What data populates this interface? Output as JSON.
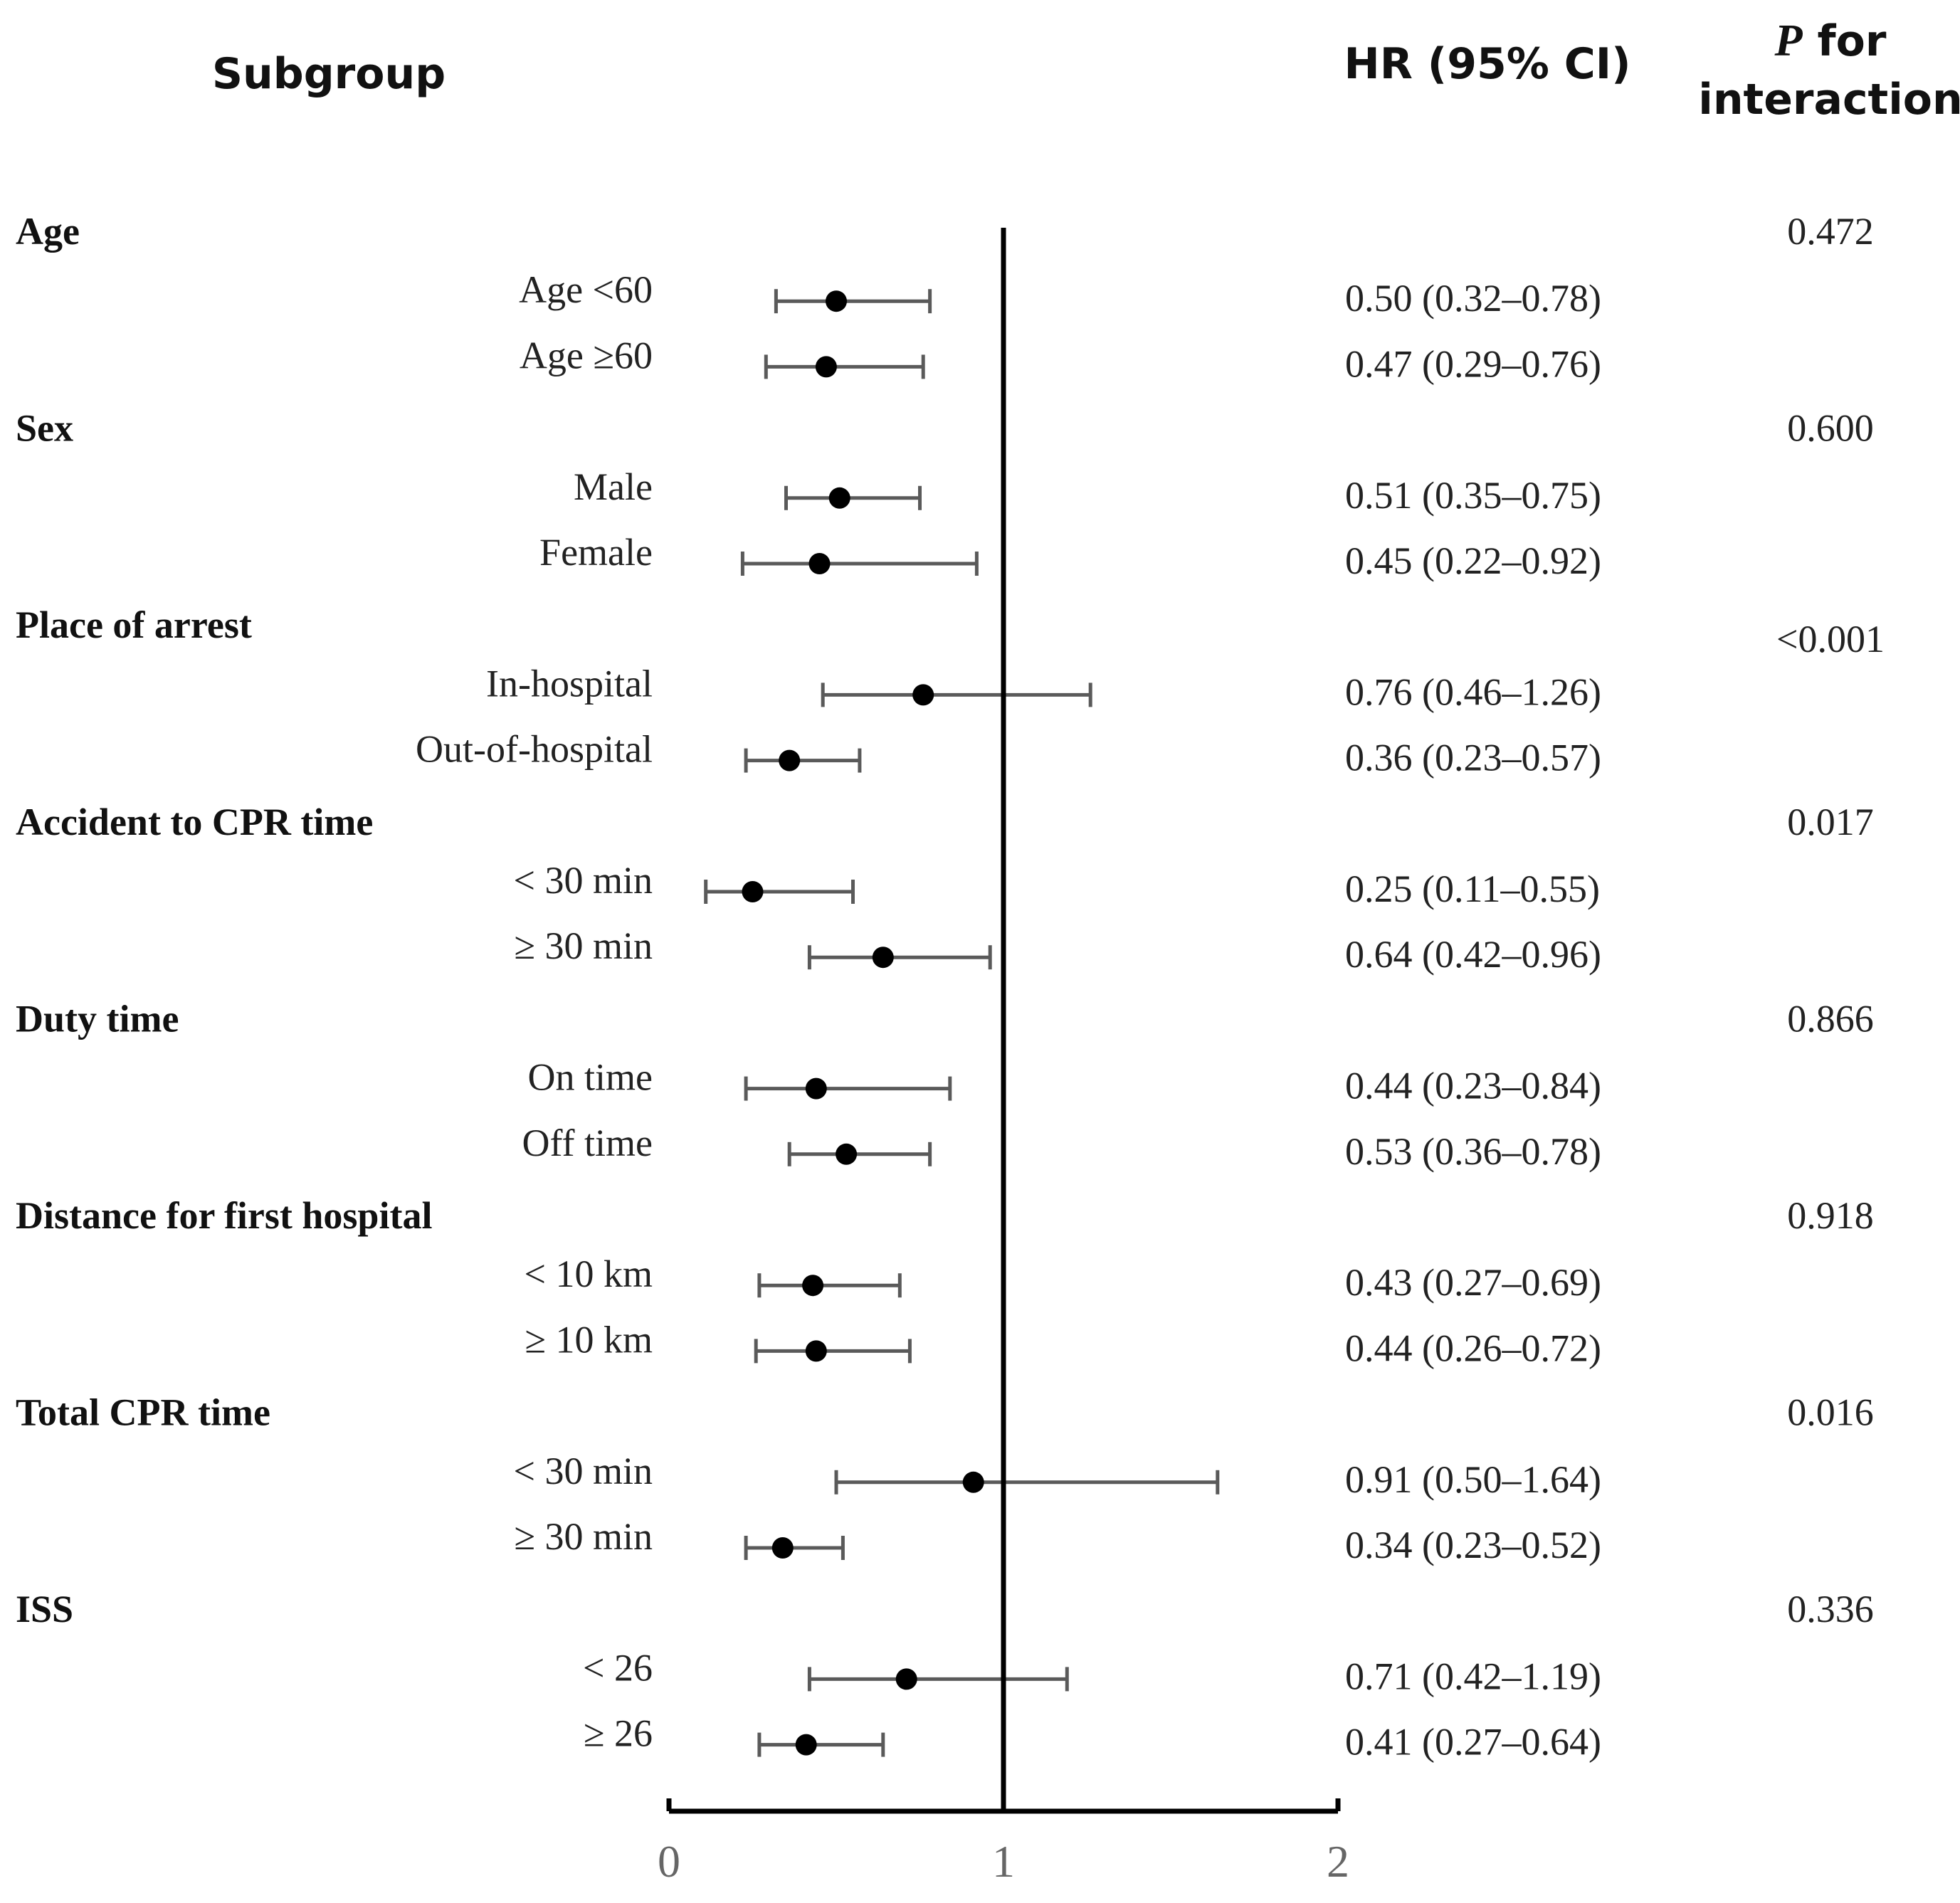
{
  "headers": {
    "subgroup": "Subgroup",
    "hr_ci": "HR (95% CI)",
    "p_italic": "P",
    "p_rest": " for",
    "p_line2": "interaction"
  },
  "chart_data": {
    "type": "forest",
    "xlim": [
      0,
      2
    ],
    "xticks": [
      "0",
      "1",
      "2"
    ],
    "reference_line": 1,
    "groups": [
      {
        "label": "Age",
        "p": "0.472",
        "rows": [
          {
            "label": "Age <60",
            "hr": 0.5,
            "lo": 0.32,
            "hi": 0.78,
            "text": "0.50 (0.32–0.78)"
          },
          {
            "label": "Age ≥60",
            "hr": 0.47,
            "lo": 0.29,
            "hi": 0.76,
            "text": "0.47 (0.29–0.76)"
          }
        ]
      },
      {
        "label": "Sex",
        "p": "0.600",
        "rows": [
          {
            "label": "Male",
            "hr": 0.51,
            "lo": 0.35,
            "hi": 0.75,
            "text": "0.51 (0.35–0.75)"
          },
          {
            "label": "Female",
            "hr": 0.45,
            "lo": 0.22,
            "hi": 0.92,
            "text": "0.45 (0.22–0.92)"
          }
        ]
      },
      {
        "label": "Place of arrest",
        "p": "<0.001",
        "rows": [
          {
            "label": "In-hospital",
            "hr": 0.76,
            "lo": 0.46,
            "hi": 1.26,
            "text": "0.76 (0.46–1.26)"
          },
          {
            "label": "Out-of-hospital",
            "hr": 0.36,
            "lo": 0.23,
            "hi": 0.57,
            "text": "0.36 (0.23–0.57)"
          }
        ]
      },
      {
        "label": "Accident to CPR time",
        "p": "0.017",
        "rows": [
          {
            "label": "< 30 min",
            "hr": 0.25,
            "lo": 0.11,
            "hi": 0.55,
            "text": "0.25 (0.11–0.55)"
          },
          {
            "label": "≥ 30 min",
            "hr": 0.64,
            "lo": 0.42,
            "hi": 0.96,
            "text": "0.64 (0.42–0.96)"
          }
        ]
      },
      {
        "label": "Duty time",
        "p": "0.866",
        "rows": [
          {
            "label": "On time",
            "hr": 0.44,
            "lo": 0.23,
            "hi": 0.84,
            "text": "0.44 (0.23–0.84)"
          },
          {
            "label": "Off time",
            "hr": 0.53,
            "lo": 0.36,
            "hi": 0.78,
            "text": "0.53 (0.36–0.78)"
          }
        ]
      },
      {
        "label": "Distance for first hospital",
        "p": "0.918",
        "rows": [
          {
            "label": "< 10 km",
            "hr": 0.43,
            "lo": 0.27,
            "hi": 0.69,
            "text": "0.43 (0.27–0.69)"
          },
          {
            "label": "≥ 10 km",
            "hr": 0.44,
            "lo": 0.26,
            "hi": 0.72,
            "text": "0.44 (0.26–0.72)"
          }
        ]
      },
      {
        "label": "Total CPR time",
        "p": "0.016",
        "rows": [
          {
            "label": "< 30 min",
            "hr": 0.91,
            "lo": 0.5,
            "hi": 1.64,
            "text": "0.91 (0.50–1.64)"
          },
          {
            "label": "≥ 30 min",
            "hr": 0.34,
            "lo": 0.23,
            "hi": 0.52,
            "text": "0.34 (0.23–0.52)"
          }
        ]
      },
      {
        "label": "ISS",
        "p": "0.336",
        "rows": [
          {
            "label": "< 26",
            "hr": 0.71,
            "lo": 0.42,
            "hi": 1.19,
            "text": "0.71 (0.42–1.19)"
          },
          {
            "label": "≥ 26",
            "hr": 0.41,
            "lo": 0.27,
            "hi": 0.64,
            "text": "0.41 (0.27–0.64)"
          }
        ]
      }
    ]
  }
}
